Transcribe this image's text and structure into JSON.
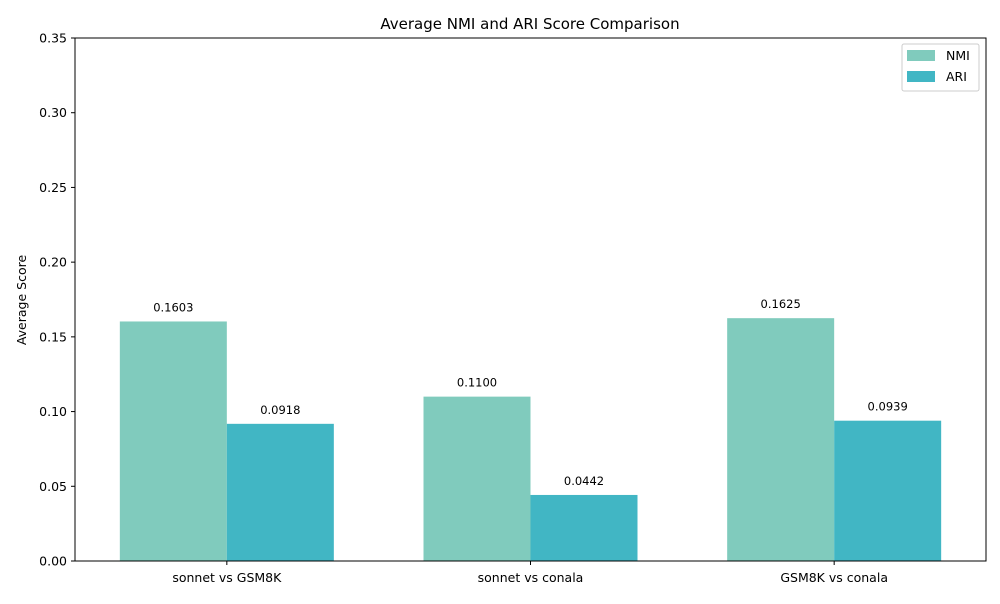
{
  "chart_data": {
    "type": "bar",
    "title": "Average NMI and ARI Score Comparison",
    "xlabel": "",
    "ylabel": "Average Score",
    "ylim": [
      0,
      0.35
    ],
    "yticks": [
      0.0,
      0.05,
      0.1,
      0.15,
      0.2,
      0.25,
      0.3,
      0.35
    ],
    "ytick_labels": [
      "0.00",
      "0.05",
      "0.10",
      "0.15",
      "0.20",
      "0.25",
      "0.30",
      "0.35"
    ],
    "categories": [
      "sonnet vs GSM8K",
      "sonnet vs conala",
      "GSM8K vs conala"
    ],
    "series": [
      {
        "name": "NMI",
        "color": "#80cbbd",
        "values": [
          0.1603,
          0.11,
          0.1625
        ],
        "labels": [
          "0.1603",
          "0.1100",
          "0.1625"
        ]
      },
      {
        "name": "ARI",
        "color": "#41b6c4",
        "values": [
          0.0918,
          0.0442,
          0.0939
        ],
        "labels": [
          "0.0918",
          "0.0442",
          "0.0939"
        ]
      }
    ],
    "legend_position": "top-right",
    "grid": false
  }
}
